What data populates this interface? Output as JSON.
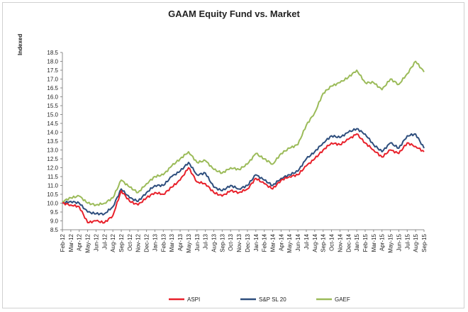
{
  "chart_data": {
    "type": "line",
    "title": "GAAM Equity Fund vs. Market",
    "ylabel": "Indexed",
    "xlabel": "",
    "ylim": [
      8.5,
      18.5
    ],
    "ytick_labels": [
      "8.5",
      "9.0",
      "9.5",
      "10.0",
      "10.5",
      "11.0",
      "11.5",
      "12.0",
      "12.5",
      "13.0",
      "13.5",
      "14.0",
      "14.5",
      "15.0",
      "15.5",
      "16.0",
      "16.5",
      "17.0",
      "17.5",
      "18.0",
      "18.5"
    ],
    "categories": [
      "Feb-12",
      "Mar-12",
      "Apr-12",
      "May-12",
      "Jun-12",
      "Jul-12",
      "Aug-12",
      "Sep-12",
      "Oct-12",
      "Nov-12",
      "Dec-12",
      "Jan-13",
      "Feb-13",
      "Mar-13",
      "Apr-13",
      "May-13",
      "Jun-13",
      "Jul-13",
      "Aug-13",
      "Sep-13",
      "Oct-13",
      "Nov-13",
      "Dec-13",
      "Jan-14",
      "Feb-14",
      "Mar-14",
      "Apr-14",
      "May-14",
      "Jun-14",
      "Jul-14",
      "Aug-14",
      "Sep-14",
      "Oct-14",
      "Nov-14",
      "Dec-14",
      "Jan-15",
      "Feb-15",
      "Mar-15",
      "Apr-15",
      "May-15",
      "Jun-15",
      "Jul-15",
      "Aug-15",
      "Sep-15"
    ],
    "series": [
      {
        "name": "ASPI",
        "color": "#e8212b",
        "values": [
          10.0,
          9.9,
          9.8,
          8.9,
          9.0,
          8.9,
          9.3,
          10.7,
          10.1,
          9.9,
          10.3,
          10.6,
          10.5,
          10.9,
          11.3,
          12.0,
          11.2,
          11.1,
          10.6,
          10.4,
          10.7,
          10.6,
          10.8,
          11.4,
          11.1,
          10.8,
          11.3,
          11.5,
          11.6,
          12.1,
          12.5,
          13.0,
          13.4,
          13.3,
          13.6,
          13.9,
          13.4,
          13.0,
          12.6,
          13.0,
          12.8,
          13.4,
          13.2,
          12.9
        ]
      },
      {
        "name": "S&P SL 20",
        "color": "#2e4e7d",
        "values": [
          10.0,
          10.1,
          10.0,
          9.5,
          9.4,
          9.4,
          9.8,
          10.8,
          10.3,
          10.1,
          10.6,
          11.0,
          11.0,
          11.5,
          11.8,
          12.3,
          11.6,
          11.7,
          10.9,
          10.7,
          11.0,
          10.8,
          11.0,
          11.6,
          11.3,
          11.0,
          11.4,
          11.6,
          11.8,
          12.5,
          12.9,
          13.4,
          13.8,
          13.7,
          14.0,
          14.2,
          13.9,
          13.3,
          12.9,
          13.4,
          13.1,
          13.8,
          13.9,
          13.1
        ]
      },
      {
        "name": "GAEF",
        "color": "#9bbb59",
        "values": [
          10.1,
          10.3,
          10.4,
          10.0,
          9.9,
          10.0,
          10.3,
          11.3,
          10.9,
          10.6,
          11.1,
          11.5,
          11.6,
          12.1,
          12.5,
          12.9,
          12.3,
          12.4,
          11.9,
          11.7,
          12.0,
          11.9,
          12.2,
          12.8,
          12.5,
          12.2,
          12.8,
          13.1,
          13.3,
          14.4,
          15.1,
          16.2,
          16.6,
          16.8,
          17.1,
          17.5,
          16.8,
          16.8,
          16.4,
          17.0,
          16.7,
          17.3,
          18.0,
          17.4
        ]
      }
    ],
    "grid": false,
    "legend_position": "bottom",
    "legend": [
      "ASPI",
      "S&P SL 20",
      "GAEF"
    ]
  }
}
